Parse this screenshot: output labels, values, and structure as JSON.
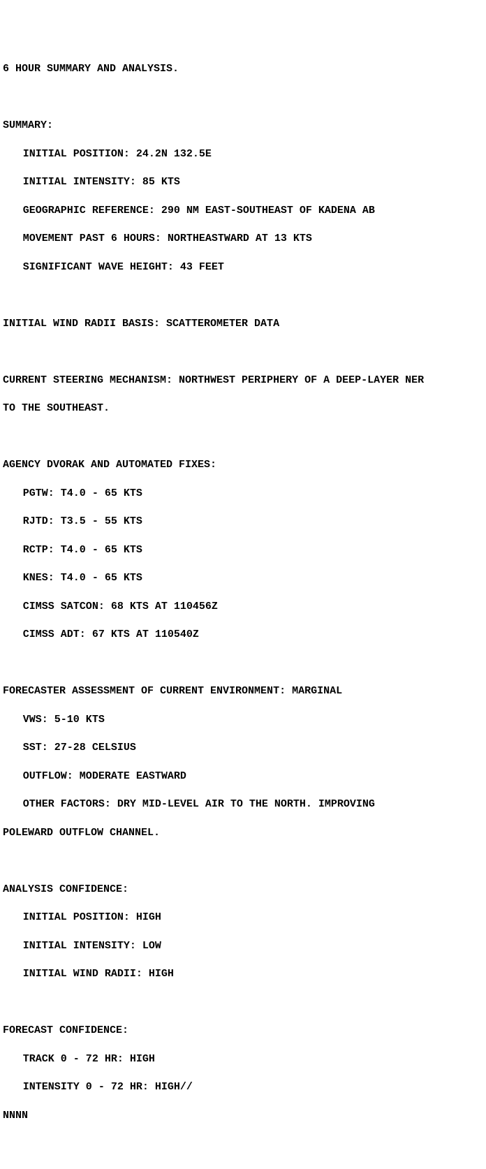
{
  "title": "6 HOUR SUMMARY AND ANALYSIS.",
  "summary": {
    "header": "SUMMARY:",
    "initial_position": "INITIAL POSITION: 24.2N 132.5E",
    "initial_intensity": "INITIAL INTENSITY: 85 KTS",
    "geographic_reference": "GEOGRAPHIC REFERENCE: 290 NM EAST-SOUTHEAST OF KADENA AB",
    "movement": "MOVEMENT PAST 6 HOURS: NORTHEASTWARD AT 13 KTS",
    "wave_height": "SIGNIFICANT WAVE HEIGHT: 43 FEET"
  },
  "wind_radii_basis": "INITIAL WIND RADII BASIS: SCATTEROMETER DATA",
  "steering": {
    "line1": "CURRENT STEERING MECHANISM: NORTHWEST PERIPHERY OF A DEEP-LAYER NER",
    "line2": "TO THE SOUTHEAST."
  },
  "dvorak": {
    "header": "AGENCY DVORAK AND AUTOMATED FIXES:",
    "pgtw": "PGTW: T4.0 - 65 KTS",
    "rjtd": "RJTD: T3.5 - 55 KTS",
    "rctp": "RCTP: T4.0 - 65 KTS",
    "knes": "KNES: T4.0 - 65 KTS",
    "cimss_satcon": "CIMSS SATCON: 68 KTS AT 110456Z",
    "cimss_adt": "CIMSS ADT: 67 KTS AT 110540Z"
  },
  "environment": {
    "header": "FORECASTER ASSESSMENT OF CURRENT ENVIRONMENT: MARGINAL",
    "vws": "VWS: 5-10 KTS",
    "sst": "SST: 27-28 CELSIUS",
    "outflow": "OUTFLOW: MODERATE EASTWARD",
    "other": "OTHER FACTORS: DRY MID-LEVEL AIR TO THE NORTH. IMPROVING",
    "other2": "POLEWARD OUTFLOW CHANNEL."
  },
  "analysis_confidence": {
    "header": "ANALYSIS CONFIDENCE:",
    "position": "INITIAL POSITION: HIGH",
    "intensity": "INITIAL INTENSITY: LOW",
    "wind_radii": "INITIAL WIND RADII: HIGH"
  },
  "forecast_confidence": {
    "header": "FORECAST CONFIDENCE:",
    "track": "TRACK 0 - 72 HR: HIGH",
    "intensity": "INTENSITY 0 - 72 HR: HIGH//"
  },
  "terminator": "NNNN"
}
